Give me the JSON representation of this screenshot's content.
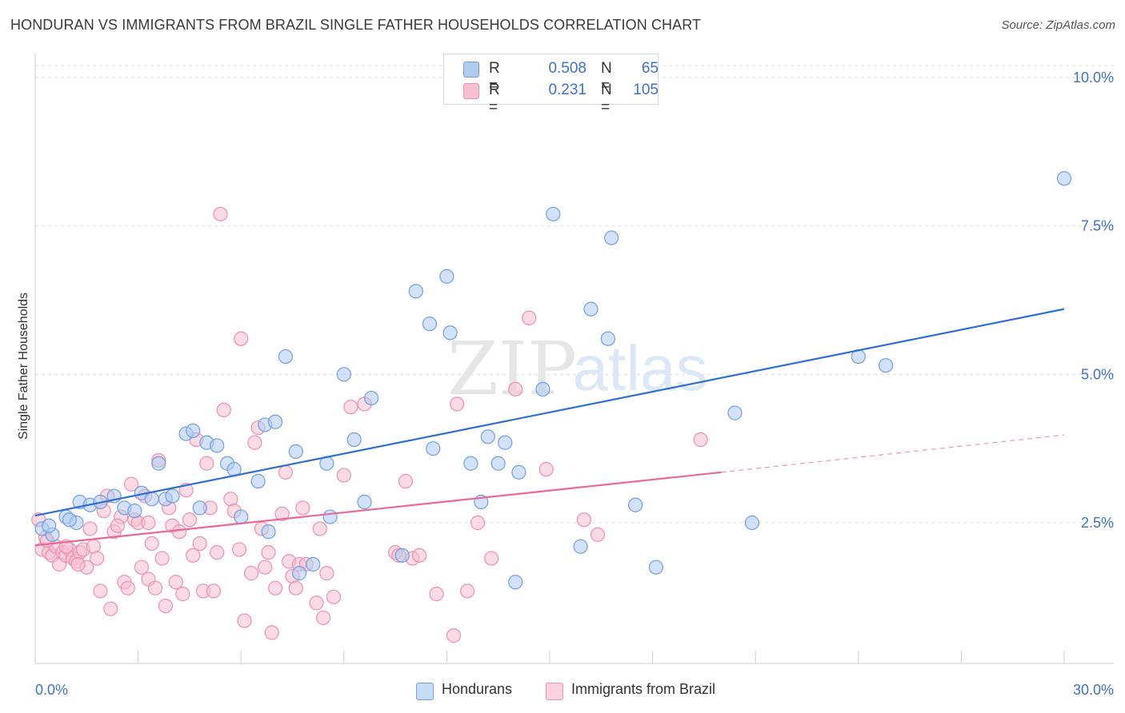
{
  "title": "HONDURAN VS IMMIGRANTS FROM BRAZIL SINGLE FATHER HOUSEHOLDS CORRELATION CHART",
  "source": "Source: ZipAtlas.com",
  "watermark": {
    "zip": "ZIP",
    "atlas": "atlas"
  },
  "legend_top": {
    "rows": [
      {
        "r_label": "R =",
        "r_value": "0.508",
        "n_label": "N =",
        "n_value": "65",
        "color": "#aecbf2"
      },
      {
        "r_label": "R =",
        "r_value": "0.231",
        "n_label": "N =",
        "n_value": "105",
        "color": "#f7bfd0"
      }
    ]
  },
  "legend_bottom": [
    {
      "label": "Hondurans",
      "color": "#aecbf2"
    },
    {
      "label": "Immigrants from Brazil",
      "color": "#f7bfd0"
    }
  ],
  "chart_data": {
    "type": "scatter",
    "title": "HONDURAN VS IMMIGRANTS FROM BRAZIL SINGLE FATHER HOUSEHOLDS CORRELATION CHART",
    "xlabel": "",
    "ylabel": "Single Father Households",
    "xlim": [
      0,
      30
    ],
    "ylim": [
      0,
      10.25
    ],
    "x_tick_labels": [
      "0.0%",
      "30.0%"
    ],
    "y_ticks": [
      2.5,
      5.0,
      7.5,
      10.0
    ],
    "y_tick_labels": [
      "2.5%",
      "5.0%",
      "7.5%",
      "10.0%"
    ],
    "grid": true,
    "series": [
      {
        "name": "Hondurans",
        "color": "#6f9fe0",
        "fill": "#aecbf2",
        "line_color": "#2f6fd0",
        "trend": {
          "x": [
            0,
            30
          ],
          "y": [
            2.62,
            6.1
          ]
        },
        "points": [
          [
            0.2,
            2.4
          ],
          [
            0.5,
            2.3
          ],
          [
            0.9,
            2.6
          ],
          [
            1.2,
            2.5
          ],
          [
            1.3,
            2.85
          ],
          [
            1.6,
            2.8
          ],
          [
            1.9,
            2.85
          ],
          [
            2.3,
            2.95
          ],
          [
            2.6,
            2.75
          ],
          [
            2.9,
            2.7
          ],
          [
            3.1,
            3.0
          ],
          [
            3.4,
            2.9
          ],
          [
            3.6,
            3.5
          ],
          [
            3.8,
            2.9
          ],
          [
            4.0,
            2.95
          ],
          [
            4.4,
            4.0
          ],
          [
            4.6,
            4.05
          ],
          [
            4.8,
            2.75
          ],
          [
            5.0,
            3.85
          ],
          [
            5.3,
            3.8
          ],
          [
            5.6,
            3.5
          ],
          [
            5.8,
            3.4
          ],
          [
            6.0,
            2.6
          ],
          [
            6.5,
            3.2
          ],
          [
            6.7,
            4.15
          ],
          [
            6.8,
            2.35
          ],
          [
            7.0,
            4.2
          ],
          [
            7.3,
            5.3
          ],
          [
            7.6,
            3.7
          ],
          [
            7.7,
            1.65
          ],
          [
            8.1,
            1.8
          ],
          [
            8.5,
            3.5
          ],
          [
            8.6,
            2.6
          ],
          [
            9.0,
            5.0
          ],
          [
            9.3,
            3.9
          ],
          [
            9.6,
            2.85
          ],
          [
            9.8,
            4.6
          ],
          [
            10.7,
            1.95
          ],
          [
            11.1,
            6.4
          ],
          [
            11.5,
            5.85
          ],
          [
            11.6,
            3.75
          ],
          [
            12.0,
            6.65
          ],
          [
            12.1,
            5.7
          ],
          [
            12.7,
            3.5
          ],
          [
            13.0,
            2.85
          ],
          [
            13.2,
            3.95
          ],
          [
            13.5,
            3.5
          ],
          [
            13.7,
            3.85
          ],
          [
            14.0,
            1.5
          ],
          [
            14.1,
            3.35
          ],
          [
            14.8,
            4.75
          ],
          [
            15.1,
            7.7
          ],
          [
            15.9,
            2.1
          ],
          [
            16.2,
            6.1
          ],
          [
            16.7,
            5.6
          ],
          [
            16.8,
            7.3
          ],
          [
            17.5,
            2.8
          ],
          [
            18.1,
            1.75
          ],
          [
            20.4,
            4.35
          ],
          [
            20.9,
            2.5
          ],
          [
            24.0,
            5.3
          ],
          [
            24.8,
            5.15
          ],
          [
            30.0,
            8.3
          ],
          [
            0.4,
            2.45
          ],
          [
            1.0,
            2.55
          ]
        ]
      },
      {
        "name": "Immigrants from Brazil",
        "color": "#ee8fb0",
        "fill": "#f7bfd0",
        "line_color": "#e8699a",
        "trend": {
          "x": [
            0,
            20
          ],
          "y": [
            2.12,
            3.35
          ]
        },
        "trend_dashed": {
          "x": [
            20,
            30
          ],
          "y": [
            3.35,
            3.98
          ]
        },
        "points": [
          [
            0.1,
            2.55
          ],
          [
            0.2,
            2.05
          ],
          [
            0.3,
            2.25
          ],
          [
            0.4,
            2.0
          ],
          [
            0.5,
            1.95
          ],
          [
            0.6,
            2.1
          ],
          [
            0.7,
            1.8
          ],
          [
            0.8,
            2.0
          ],
          [
            0.9,
            1.95
          ],
          [
            1.0,
            2.05
          ],
          [
            1.1,
            1.9
          ],
          [
            1.2,
            1.85
          ],
          [
            1.3,
            2.0
          ],
          [
            1.4,
            2.05
          ],
          [
            1.5,
            1.75
          ],
          [
            1.6,
            2.4
          ],
          [
            1.7,
            2.1
          ],
          [
            1.8,
            1.9
          ],
          [
            1.9,
            1.35
          ],
          [
            2.0,
            2.7
          ],
          [
            2.1,
            2.95
          ],
          [
            2.2,
            1.05
          ],
          [
            2.3,
            2.35
          ],
          [
            2.5,
            2.6
          ],
          [
            2.6,
            1.5
          ],
          [
            2.7,
            1.4
          ],
          [
            2.8,
            3.15
          ],
          [
            2.9,
            2.55
          ],
          [
            3.0,
            2.5
          ],
          [
            3.1,
            1.75
          ],
          [
            3.2,
            2.95
          ],
          [
            3.3,
            1.55
          ],
          [
            3.4,
            2.15
          ],
          [
            3.5,
            1.4
          ],
          [
            3.6,
            3.55
          ],
          [
            3.7,
            1.9
          ],
          [
            3.8,
            1.1
          ],
          [
            3.9,
            2.75
          ],
          [
            4.0,
            2.45
          ],
          [
            4.1,
            1.5
          ],
          [
            4.2,
            2.35
          ],
          [
            4.3,
            1.3
          ],
          [
            4.4,
            3.05
          ],
          [
            4.5,
            2.55
          ],
          [
            4.6,
            1.95
          ],
          [
            4.7,
            3.9
          ],
          [
            4.8,
            2.15
          ],
          [
            4.9,
            1.35
          ],
          [
            5.0,
            3.5
          ],
          [
            5.1,
            2.75
          ],
          [
            5.2,
            1.35
          ],
          [
            5.3,
            2.0
          ],
          [
            5.4,
            7.7
          ],
          [
            5.5,
            4.4
          ],
          [
            5.7,
            2.9
          ],
          [
            5.8,
            2.7
          ],
          [
            6.0,
            5.6
          ],
          [
            6.1,
            0.85
          ],
          [
            6.3,
            1.65
          ],
          [
            6.4,
            3.85
          ],
          [
            6.5,
            4.1
          ],
          [
            6.6,
            2.4
          ],
          [
            6.7,
            1.75
          ],
          [
            6.8,
            2.0
          ],
          [
            6.9,
            0.65
          ],
          [
            7.0,
            1.4
          ],
          [
            7.2,
            2.65
          ],
          [
            7.3,
            3.35
          ],
          [
            7.4,
            1.85
          ],
          [
            7.5,
            1.6
          ],
          [
            7.6,
            1.4
          ],
          [
            7.7,
            1.8
          ],
          [
            7.8,
            2.75
          ],
          [
            8.2,
            1.15
          ],
          [
            8.3,
            2.4
          ],
          [
            8.4,
            0.9
          ],
          [
            8.5,
            1.65
          ],
          [
            8.7,
            1.25
          ],
          [
            9.0,
            3.3
          ],
          [
            9.2,
            4.45
          ],
          [
            9.6,
            4.5
          ],
          [
            10.5,
            2.0
          ],
          [
            10.6,
            1.95
          ],
          [
            10.8,
            3.2
          ],
          [
            11.0,
            1.9
          ],
          [
            11.7,
            1.3
          ],
          [
            12.2,
            0.6
          ],
          [
            12.3,
            4.5
          ],
          [
            12.6,
            1.35
          ],
          [
            12.9,
            2.5
          ],
          [
            14.0,
            4.75
          ],
          [
            14.4,
            5.95
          ],
          [
            14.9,
            3.4
          ],
          [
            16.0,
            2.55
          ],
          [
            16.4,
            2.3
          ],
          [
            19.4,
            3.9
          ],
          [
            2.4,
            2.45
          ],
          [
            3.3,
            2.5
          ],
          [
            0.35,
            2.2
          ],
          [
            0.9,
            2.1
          ],
          [
            1.25,
            1.8
          ],
          [
            5.95,
            2.05
          ],
          [
            7.9,
            1.8
          ],
          [
            11.2,
            1.95
          ],
          [
            13.3,
            1.9
          ]
        ]
      }
    ]
  }
}
